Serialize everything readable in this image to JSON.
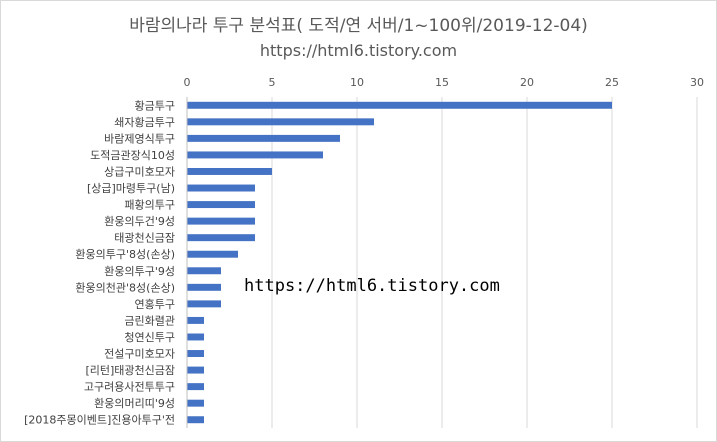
{
  "chart_data": {
    "type": "bar",
    "orientation": "horizontal",
    "title": "바람의나라 투구 분석표( 도적/연 서버/1~100위/2019-12-04)",
    "subtitle": "https://html6.tistory.com",
    "watermark": "https://html6.tistory.com",
    "xlim": [
      0,
      30
    ],
    "xticks": [
      0,
      5,
      10,
      15,
      20,
      25,
      30
    ],
    "x_axis_position": "top",
    "grid": true,
    "bar_color": "#4472c4",
    "categories": [
      "황금투구",
      "쇄자황금투구",
      "바람제영식투구",
      "도적금관장식10성",
      "상급구미호모자",
      "[상급]마령투구(남)",
      "패황의투구",
      "환웅의두건'9성",
      "태광천신금잠",
      "환웅의투구'8성(손상)",
      "환웅의투구'9성",
      "환웅의천관'8성(손상)",
      "연홍투구",
      "금린화렬관",
      "청연신투구",
      "전설구미호모자",
      "[리턴]태광천신금잠",
      "고구려용사전투투구",
      "환웅의머리띠'9성",
      "[2018주몽이벤트]진용아투구'전"
    ],
    "values": [
      25,
      11,
      9,
      8,
      5,
      4,
      4,
      4,
      4,
      3,
      2,
      2,
      2,
      1,
      1,
      1,
      1,
      1,
      1,
      1
    ]
  }
}
